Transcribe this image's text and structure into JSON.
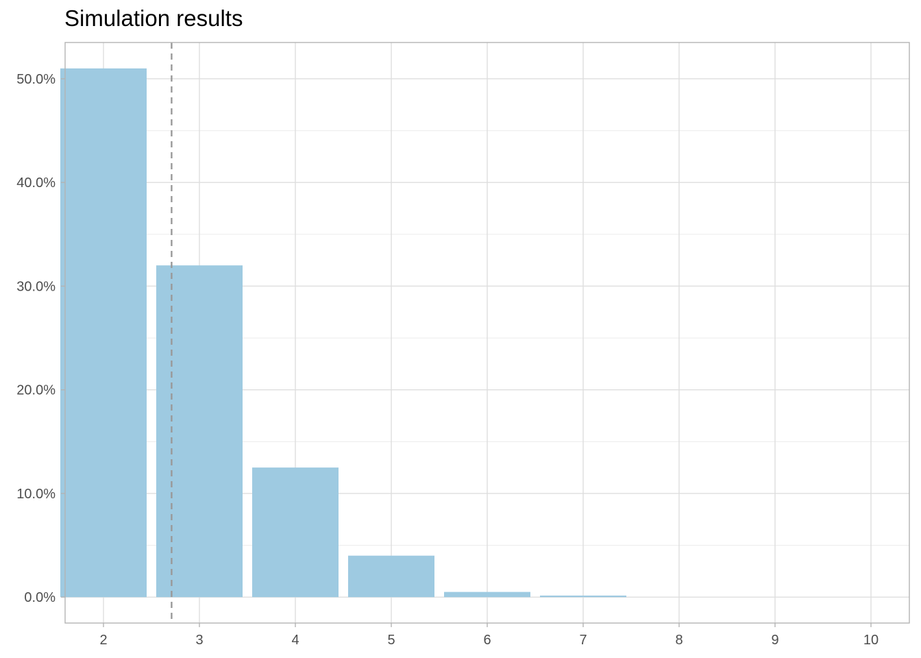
{
  "chart_data": {
    "type": "bar",
    "title": "Simulation results",
    "xlabel": "",
    "ylabel": "",
    "categories": [
      "2",
      "3",
      "4",
      "5",
      "6",
      "7",
      "8",
      "9",
      "10"
    ],
    "x": [
      2,
      3,
      4,
      5,
      6,
      7,
      8,
      9,
      10
    ],
    "values": [
      51.0,
      32.0,
      12.5,
      4.0,
      0.5,
      0.15,
      0.0,
      0.0,
      0.0
    ],
    "y_unit": "%",
    "yticks": [
      0,
      10,
      20,
      30,
      40,
      50
    ],
    "ytick_labels": [
      "0.0%",
      "10.0%",
      "20.0%",
      "30.0%",
      "40.0%",
      "50.0%"
    ],
    "xlim": [
      1.6,
      10.4
    ],
    "ylim": [
      -2.5,
      53.5
    ],
    "reference_line": {
      "x": 2.71,
      "style": "dashed",
      "color": "#999999"
    },
    "bar_color": "#9ecae1",
    "grid": true,
    "legend": "none"
  }
}
